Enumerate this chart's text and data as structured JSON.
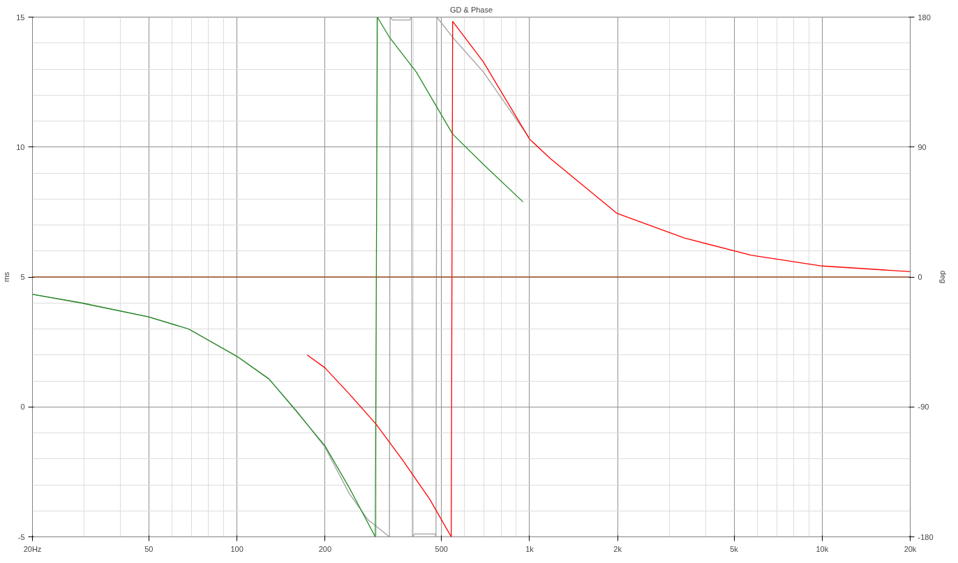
{
  "chart_data": {
    "type": "line",
    "title": "GD & Phase",
    "ylabel": "ms",
    "y2label": "deg",
    "log": "x",
    "grid": true,
    "marker": "none",
    "line_style": "solid",
    "xlim": [
      20,
      20000
    ],
    "xticks": [
      {
        "value": 20,
        "label": "20Hz"
      },
      50,
      100,
      200,
      500,
      {
        "value": 1000,
        "label": "1k"
      },
      {
        "value": 2000,
        "label": "2k"
      },
      {
        "value": 5000,
        "label": "5k"
      },
      {
        "value": 10000,
        "label": "10k"
      },
      {
        "value": 20000,
        "label": "20k"
      }
    ],
    "ylim": [
      -5,
      15
    ],
    "yticks": [
      -5,
      0,
      5,
      10,
      15
    ],
    "y2lim": [
      -180,
      180
    ],
    "y2ticks": [
      -180,
      -90,
      0,
      90,
      180
    ],
    "series": [
      {
        "color": "#a0a0a0",
        "axis": "y2",
        "x": [
          20,
          29.4,
          49.8,
          68.3,
          100,
          128.6,
          158.9,
          200,
          242,
          280,
          332,
          334,
          340,
          390,
          395,
          398,
          405,
          475,
          479,
          482,
          546,
          695,
          1000
        ],
        "values": [
          -12,
          -18,
          -27.6,
          -36,
          -55,
          -70.6,
          -92,
          -118,
          -150,
          -168,
          -180,
          180,
          178,
          178,
          180,
          -180,
          -178,
          -178,
          -180,
          180,
          166,
          142,
          96
        ]
      },
      {
        "color": "#228b22",
        "axis": "y2",
        "x": [
          20,
          29.4,
          49.8,
          68.3,
          100,
          128.6,
          158.9,
          200,
          242,
          297,
          302,
          332,
          410,
          546,
          695,
          950
        ],
        "values": [
          -12,
          -18,
          -27.6,
          -36,
          -55,
          -70.6,
          -92.6,
          -117,
          -146,
          -180,
          180,
          166,
          142,
          99,
          78,
          52
        ]
      },
      {
        "color": "#ff0000",
        "axis": "y2",
        "x": [
          173.8,
          200,
          242,
          299,
          369,
          456,
          540,
          546,
          695,
          1000,
          1178,
          1992,
          3382,
          5730,
          10000,
          20000
        ],
        "values": [
          -54,
          -63,
          -81,
          -102,
          -127,
          -154,
          -180,
          177,
          149,
          95.5,
          82,
          44,
          27,
          15,
          7.6,
          3.7
        ]
      },
      {
        "color": "#a0522d",
        "x": [
          20,
          20000
        ],
        "values": [
          5,
          5
        ]
      }
    ]
  }
}
